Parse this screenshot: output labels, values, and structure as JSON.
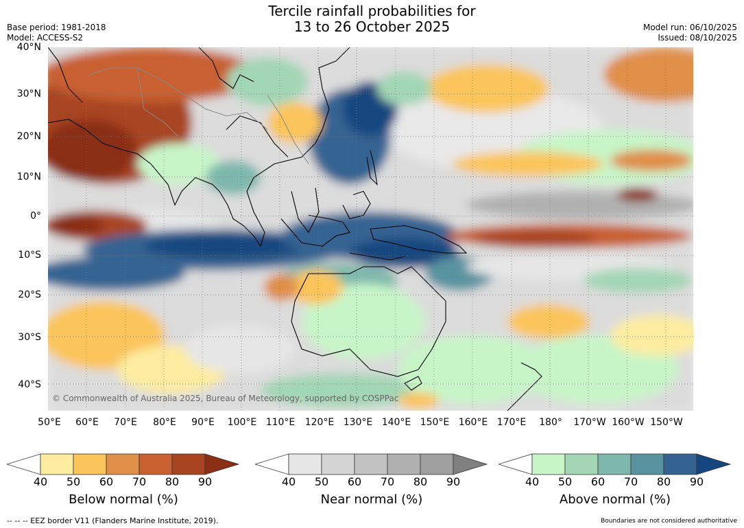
{
  "title": {
    "line1": "Tercile rainfall probabilities for",
    "line2": "13 to 26 October 2025"
  },
  "meta": {
    "base_period": "Base period: 1981-2018",
    "model": "Model: ACCESS-S2",
    "model_run": "Model run: 06/10/2025",
    "issued": "Issued: 08/10/2025"
  },
  "map": {
    "lat_labels": [
      "40°N",
      "30°N",
      "20°N",
      "10°N",
      "0°",
      "10°S",
      "20°S",
      "30°S",
      "40°S"
    ],
    "lon_labels": [
      "50°E",
      "60°E",
      "70°E",
      "80°E",
      "90°E",
      "100°E",
      "110°E",
      "120°E",
      "130°E",
      "140°E",
      "150°E",
      "160°E",
      "170°E",
      "180°",
      "170°W",
      "160°W",
      "150°W"
    ],
    "credit": "© Commonwealth of Australia 2025, Bureau of Meteorology, supported by COSPPac"
  },
  "colorbars": [
    {
      "title": "Below normal (%)",
      "ticks": [
        "40",
        "50",
        "60",
        "70",
        "80",
        "90"
      ],
      "colors": [
        "#ffffff",
        "#fdeca0",
        "#fbc55c",
        "#e08f48",
        "#c86030",
        "#a84420",
        "#8a2e15"
      ]
    },
    {
      "title": "Near normal (%)",
      "ticks": [
        "40",
        "50",
        "60",
        "70",
        "80",
        "90"
      ],
      "colors": [
        "#ffffff",
        "#e6e6e6",
        "#d4d4d4",
        "#c2c2c2",
        "#b0b0b0",
        "#9f9f9f",
        "#808080"
      ]
    },
    {
      "title": "Above normal (%)",
      "ticks": [
        "40",
        "50",
        "60",
        "70",
        "80",
        "90"
      ],
      "colors": [
        "#ffffff",
        "#c8f5c8",
        "#a3d6b5",
        "#7eb8ac",
        "#5a93a0",
        "#346392",
        "#15467f"
      ]
    }
  ],
  "footer": {
    "eez": "--  --  -- EEZ border V11 (Flanders Marine Institute, 2019).",
    "boundaries": "Boundaries are not considered authoritative"
  }
}
